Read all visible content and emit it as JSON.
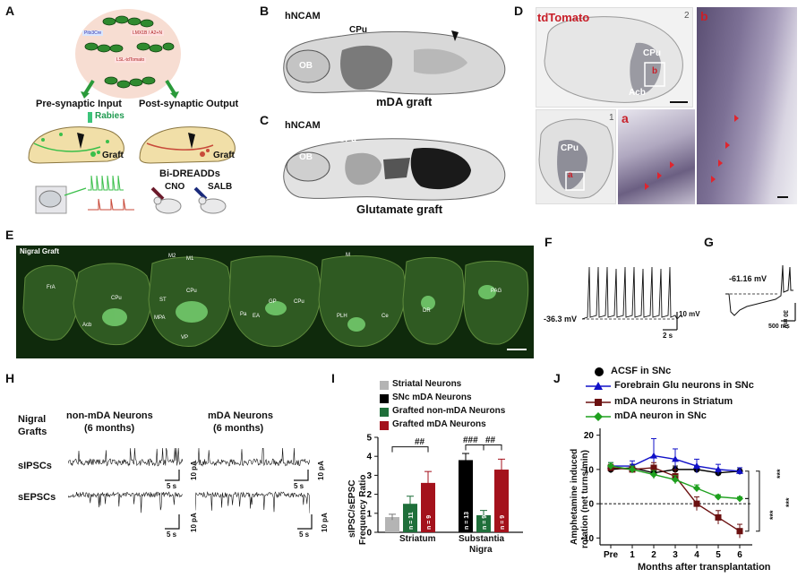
{
  "panels": {
    "A": {
      "label": "A",
      "circle_labels": [
        "Pitx3Cre",
        "LMX1B / A2+N",
        "LSL-tdTomato"
      ],
      "pre_label": "Pre-synaptic Input",
      "post_label": "Post-synaptic Output",
      "rabies": "Rabies",
      "graft_left": "Graft",
      "graft_right": "Graft",
      "dreadds": "Bi-DREADDs",
      "cno": "CNO",
      "salb": "SALB"
    },
    "B": {
      "label": "B",
      "marker": "hNCAM",
      "ob": "OB",
      "cpu": "CPu",
      "title": "mDA graft"
    },
    "C": {
      "label": "C",
      "marker": "hNCAM",
      "ob": "OB",
      "cpu": "CPu",
      "title": "Glutamate graft"
    },
    "D": {
      "label": "D",
      "marker": "tdTomato",
      "cpu_top": "CPu",
      "acb": "Acb",
      "cpu_bottom": "CPu",
      "sub_a": "a",
      "sub_b": "b",
      "inset_a": "a",
      "inset_b": "b",
      "num2": "2",
      "num1": "1"
    },
    "E": {
      "label": "E",
      "title": "Nigral Graft",
      "regions": [
        "FrA",
        "CPu",
        "Acb",
        "M2",
        "M1",
        "ST",
        "CPu",
        "MPA",
        "VP",
        "GP",
        "CPu",
        "Pa",
        "EA",
        "M",
        "PLH",
        "Ce",
        "DR",
        "PAG"
      ]
    },
    "F": {
      "label": "F",
      "rest_label": "-36.3 mV",
      "scale_v": "10 mV",
      "scale_t": "2 s"
    },
    "G": {
      "label": "G",
      "rest_label": "-61.16 mV",
      "scale_v": "30 mV",
      "scale_t": "500 ms"
    },
    "H": {
      "label": "H",
      "row_title_1": "Nigral",
      "row_title_2": "Grafts",
      "col1_1": "non-mDA Neurons",
      "col1_2": "(6 months)",
      "col2_1": "mDA Neurons",
      "col2_2": "(6 months)",
      "row1": "sIPSCs",
      "row2": "sEPSCs",
      "scale_t": "5 s",
      "scale_a": "10 pA"
    },
    "I": {
      "label": "I",
      "legend": [
        "Striatal Neurons",
        "SNc mDA Neurons",
        "Grafted non-mDA Neurons",
        "Grafted mDA Neurons"
      ],
      "ylabel_1": "sIPSC/sEPSC",
      "ylabel_2": "Frequency Ratio",
      "sig_left": "##",
      "sig_mid": "###",
      "sig_right": "##",
      "group_1": "Striatum",
      "group_2_1": "Substantia",
      "group_2_2": "Nigra"
    },
    "J": {
      "label": "J",
      "ylabel_1": "Amphetamine induced",
      "ylabel_2": "rotation (net turns/min)",
      "xlabel": "Months after transplantation",
      "sig1": "***",
      "sig2": "***",
      "sig3": "***"
    }
  },
  "chart_data": [
    {
      "type": "bar",
      "title": "",
      "ylabel": "sIPSC/sEPSC Frequency Ratio",
      "ylim": [
        0,
        5
      ],
      "yticks": [
        0,
        1,
        2,
        3,
        4,
        5
      ],
      "groups": [
        "Striatum",
        "Substantia Nigra"
      ],
      "bars": [
        {
          "group": "Striatum",
          "series": "Striatal Neurons",
          "value": 0.8,
          "error": 0.15,
          "n": "",
          "color": "#b4b4b4"
        },
        {
          "group": "Striatum",
          "series": "Grafted non-mDA Neurons",
          "value": 1.5,
          "error": 0.4,
          "n": "n = 11",
          "color": "#1f6f3a"
        },
        {
          "group": "Striatum",
          "series": "Grafted mDA Neurons",
          "value": 2.6,
          "error": 0.6,
          "n": "n = 9",
          "color": "#a4121c"
        },
        {
          "group": "Substantia Nigra",
          "series": "SNc mDA Neurons",
          "value": 3.8,
          "error": 0.35,
          "n": "n = 13",
          "color": "#000000"
        },
        {
          "group": "Substantia Nigra",
          "series": "Grafted non-mDA Neurons",
          "value": 0.9,
          "error": 0.25,
          "n": "n = 9",
          "color": "#1f6f3a"
        },
        {
          "group": "Substantia Nigra",
          "series": "Grafted mDA Neurons",
          "value": 3.3,
          "error": 0.55,
          "n": "n = 9",
          "color": "#a4121c"
        }
      ]
    },
    {
      "type": "line",
      "title": "",
      "xlabel": "Months after transplantation",
      "ylabel": "Amphetamine induced rotation (net turns/min)",
      "categories": [
        "Pre",
        "1",
        "2",
        "3",
        "4",
        "5",
        "6"
      ],
      "ylim": [
        -12,
        22
      ],
      "yticks": [
        -10,
        0,
        10,
        20
      ],
      "reference_line": 0,
      "series": [
        {
          "name": "ACSF in SNc",
          "color": "#000000",
          "marker": "circle",
          "values": [
            10,
            10.5,
            9,
            10,
            10,
            9,
            9.5
          ],
          "errors": [
            1,
            1,
            1.2,
            1,
            1,
            1,
            1
          ]
        },
        {
          "name": "Forebrain Glu neurons in SNc",
          "color": "#1010c8",
          "marker": "triangle",
          "values": [
            11,
            11,
            14,
            13,
            11,
            10,
            9.5
          ],
          "errors": [
            1,
            1.5,
            5,
            3,
            2,
            1.5,
            1
          ]
        },
        {
          "name": "mDA neurons in Striatum",
          "color": "#6b1010",
          "marker": "square",
          "values": [
            10.5,
            10,
            10.5,
            8,
            0,
            -4,
            -8
          ],
          "errors": [
            1,
            1,
            1.5,
            2,
            2,
            2,
            2
          ]
        },
        {
          "name": "mDA neuron in SNc",
          "color": "#1ea01e",
          "marker": "diamond",
          "values": [
            11,
            10,
            8.5,
            7,
            4.5,
            2,
            1.5
          ],
          "errors": [
            1,
            1,
            1.2,
            1.2,
            1,
            0.6,
            0.5
          ]
        }
      ]
    }
  ]
}
